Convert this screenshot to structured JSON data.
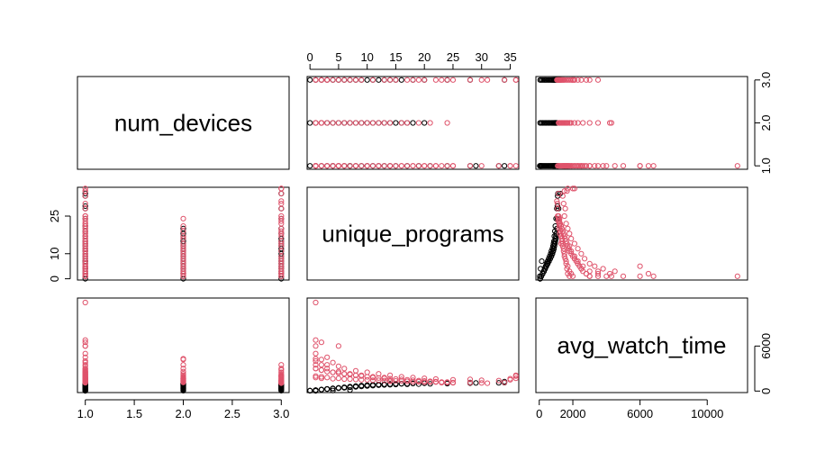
{
  "chart_data": {
    "type": "scatter",
    "variables": [
      "num_devices",
      "unique_programs",
      "avg_watch_time"
    ],
    "colors": {
      "group_a": "#000000",
      "group_b": "#DF536B"
    },
    "group_color_order": [
      "group_a",
      "group_b"
    ],
    "axes": {
      "num_devices": {
        "range": [
          0.92,
          3.08
        ],
        "ticks": [
          "1.0",
          "1.5",
          "2.0",
          "2.5",
          "3.0"
        ],
        "tick_values": [
          1.0,
          1.5,
          2.0,
          2.5,
          3.0
        ]
      },
      "unique_programs": {
        "range": [
          -0.5,
          36.5
        ],
        "ticks": [
          "0",
          "5",
          "10",
          "15",
          "20",
          "25",
          "30",
          "35"
        ],
        "tick_values": [
          0,
          5,
          10,
          15,
          20,
          25,
          30,
          35
        ],
        "left_ticks": [
          "0",
          "10",
          "25"
        ],
        "left_tick_values": [
          0,
          10,
          25
        ]
      },
      "avg_watch_time": {
        "range": [
          -200,
          12400
        ],
        "ticks": [
          "0",
          "2000",
          "6000",
          "10000"
        ],
        "tick_values": [
          0,
          2000,
          6000,
          10000
        ],
        "right_ticks": [
          "0",
          "6000"
        ],
        "right_tick_values": [
          0,
          6000
        ]
      }
    },
    "axis_labels": {
      "top": [
        "0",
        "5",
        "10",
        "15",
        "20",
        "25",
        "30",
        "35"
      ],
      "right_top": [
        "1.0",
        "2.0",
        "3.0"
      ],
      "left_middle": [
        "0",
        "10",
        "25"
      ],
      "right_bottom": [
        "0",
        "6000"
      ],
      "bottom_left": [
        "1.0",
        "1.5",
        "2.0",
        "2.5",
        "3.0"
      ],
      "bottom_right": [
        "0",
        "2000",
        "6000",
        "10000"
      ]
    },
    "observations": [
      [
        1,
        0,
        50,
        0
      ],
      [
        1,
        1,
        120,
        0
      ],
      [
        1,
        2,
        200,
        0
      ],
      [
        1,
        3,
        260,
        0
      ],
      [
        1,
        4,
        320,
        0
      ],
      [
        1,
        5,
        380,
        0
      ],
      [
        1,
        6,
        440,
        0
      ],
      [
        1,
        7,
        500,
        0
      ],
      [
        1,
        8,
        560,
        0
      ],
      [
        1,
        9,
        620,
        0
      ],
      [
        1,
        10,
        680,
        0
      ],
      [
        1,
        11,
        720,
        0
      ],
      [
        1,
        12,
        780,
        0
      ],
      [
        1,
        13,
        820,
        0
      ],
      [
        1,
        14,
        850,
        0
      ],
      [
        1,
        15,
        880,
        0
      ],
      [
        1,
        17,
        900,
        0
      ],
      [
        1,
        19,
        930,
        0
      ],
      [
        1,
        21,
        960,
        0
      ],
      [
        1,
        24,
        1000,
        0
      ],
      [
        1,
        28,
        1050,
        0
      ],
      [
        1,
        29,
        1080,
        0
      ],
      [
        1,
        33,
        1100,
        0
      ],
      [
        1,
        34,
        1120,
        0
      ],
      [
        1,
        1,
        30,
        0
      ],
      [
        1,
        4,
        80,
        0
      ],
      [
        1,
        7,
        150,
        0
      ],
      [
        2,
        0,
        50,
        0
      ],
      [
        2,
        1,
        120,
        0
      ],
      [
        2,
        2,
        200,
        0
      ],
      [
        2,
        3,
        280,
        0
      ],
      [
        2,
        4,
        350,
        0
      ],
      [
        2,
        5,
        420,
        0
      ],
      [
        2,
        6,
        500,
        0
      ],
      [
        2,
        7,
        580,
        0
      ],
      [
        2,
        8,
        650,
        0
      ],
      [
        2,
        9,
        720,
        0
      ],
      [
        2,
        10,
        780,
        0
      ],
      [
        2,
        11,
        830,
        0
      ],
      [
        2,
        12,
        870,
        0
      ],
      [
        2,
        13,
        900,
        0
      ],
      [
        2,
        14,
        930,
        0
      ],
      [
        2,
        15,
        950,
        0
      ],
      [
        2,
        16,
        970,
        0
      ],
      [
        2,
        17,
        990,
        0
      ],
      [
        2,
        18,
        1010,
        0
      ],
      [
        2,
        20,
        1050,
        0
      ],
      [
        3,
        0,
        50,
        0
      ],
      [
        3,
        1,
        120,
        0
      ],
      [
        3,
        2,
        200,
        0
      ],
      [
        3,
        3,
        280,
        0
      ],
      [
        3,
        4,
        350,
        0
      ],
      [
        3,
        5,
        420,
        0
      ],
      [
        3,
        6,
        500,
        0
      ],
      [
        3,
        7,
        580,
        0
      ],
      [
        3,
        8,
        650,
        0
      ],
      [
        3,
        9,
        720,
        0
      ],
      [
        3,
        10,
        780,
        0
      ],
      [
        3,
        11,
        830,
        0
      ],
      [
        3,
        12,
        870,
        0
      ],
      [
        3,
        13,
        900,
        0
      ],
      [
        3,
        14,
        930,
        0
      ],
      [
        3,
        15,
        960,
        0
      ],
      [
        3,
        16,
        990,
        0
      ],
      [
        3,
        18,
        1020,
        0
      ],
      [
        3,
        20,
        1050,
        0
      ],
      [
        3,
        24,
        1080,
        0
      ],
      [
        3,
        28,
        1150,
        0
      ],
      [
        3,
        34,
        1250,
        0
      ],
      [
        1,
        1,
        3000,
        1
      ],
      [
        1,
        2,
        2800,
        1
      ],
      [
        1,
        3,
        2600,
        1
      ],
      [
        1,
        4,
        2500,
        1
      ],
      [
        1,
        5,
        2400,
        1
      ],
      [
        1,
        6,
        2300,
        1
      ],
      [
        1,
        7,
        2200,
        1
      ],
      [
        1,
        8,
        2100,
        1
      ],
      [
        1,
        9,
        2000,
        1
      ],
      [
        1,
        10,
        1900,
        1
      ],
      [
        1,
        11,
        1800,
        1
      ],
      [
        1,
        12,
        1750,
        1
      ],
      [
        1,
        13,
        1700,
        1
      ],
      [
        1,
        14,
        1650,
        1
      ],
      [
        1,
        15,
        1600,
        1
      ],
      [
        1,
        16,
        1550,
        1
      ],
      [
        1,
        17,
        1500,
        1
      ],
      [
        1,
        18,
        1450,
        1
      ],
      [
        1,
        19,
        1400,
        1
      ],
      [
        1,
        20,
        1350,
        1
      ],
      [
        1,
        21,
        1300,
        1
      ],
      [
        1,
        22,
        1250,
        1
      ],
      [
        1,
        23,
        1200,
        1
      ],
      [
        1,
        24,
        1150,
        1
      ],
      [
        1,
        25,
        1100,
        1
      ],
      [
        1,
        1,
        3500,
        1
      ],
      [
        1,
        1,
        4000,
        1
      ],
      [
        1,
        1,
        5000,
        1
      ],
      [
        1,
        1,
        6000,
        1
      ],
      [
        1,
        2,
        6500,
        1
      ],
      [
        1,
        1,
        6800,
        1
      ],
      [
        1,
        3,
        4500,
        1
      ],
      [
        1,
        4,
        3800,
        1
      ],
      [
        1,
        5,
        3300,
        1
      ],
      [
        1,
        6,
        3000,
        1
      ],
      [
        1,
        8,
        2700,
        1
      ],
      [
        1,
        10,
        2500,
        1
      ],
      [
        1,
        12,
        2300,
        1
      ],
      [
        1,
        14,
        2100,
        1
      ],
      [
        1,
        16,
        1900,
        1
      ],
      [
        1,
        18,
        1800,
        1
      ],
      [
        1,
        20,
        1700,
        1
      ],
      [
        1,
        22,
        1600,
        1
      ],
      [
        1,
        25,
        1500,
        1
      ],
      [
        1,
        28,
        1550,
        1
      ],
      [
        1,
        30,
        1450,
        1
      ],
      [
        1,
        33,
        1400,
        1
      ],
      [
        1,
        35,
        1500,
        1
      ],
      [
        1,
        36,
        1700,
        1
      ],
      [
        1,
        35,
        1650,
        1
      ],
      [
        1,
        1,
        11800,
        1
      ],
      [
        1,
        5,
        6000,
        1
      ],
      [
        2,
        1,
        1800,
        1
      ],
      [
        2,
        2,
        1700,
        1
      ],
      [
        2,
        4,
        1650,
        1
      ],
      [
        2,
        6,
        1600,
        1
      ],
      [
        2,
        8,
        1550,
        1
      ],
      [
        2,
        10,
        1500,
        1
      ],
      [
        2,
        12,
        1450,
        1
      ],
      [
        2,
        14,
        1400,
        1
      ],
      [
        2,
        16,
        1350,
        1
      ],
      [
        2,
        17,
        1300,
        1
      ],
      [
        2,
        19,
        1250,
        1
      ],
      [
        2,
        21,
        1200,
        1
      ],
      [
        2,
        24,
        1150,
        1
      ],
      [
        2,
        2,
        3500,
        1
      ],
      [
        2,
        3,
        3000,
        1
      ],
      [
        2,
        5,
        2600,
        1
      ],
      [
        2,
        7,
        2300,
        1
      ],
      [
        2,
        9,
        2100,
        1
      ],
      [
        2,
        11,
        1900,
        1
      ],
      [
        2,
        13,
        1800,
        1
      ],
      [
        2,
        1,
        4300,
        1
      ],
      [
        2,
        2,
        4200,
        1
      ],
      [
        3,
        1,
        2000,
        1
      ],
      [
        3,
        2,
        1900,
        1
      ],
      [
        3,
        3,
        1800,
        1
      ],
      [
        3,
        5,
        1700,
        1
      ],
      [
        3,
        7,
        1600,
        1
      ],
      [
        3,
        9,
        1500,
        1
      ],
      [
        3,
        11,
        1450,
        1
      ],
      [
        3,
        13,
        1400,
        1
      ],
      [
        3,
        15,
        1350,
        1
      ],
      [
        3,
        17,
        1300,
        1
      ],
      [
        3,
        19,
        1250,
        1
      ],
      [
        3,
        22,
        1200,
        1
      ],
      [
        3,
        25,
        1150,
        1
      ],
      [
        3,
        28,
        1100,
        1
      ],
      [
        3,
        31,
        1050,
        1
      ],
      [
        3,
        36,
        2000,
        1
      ],
      [
        3,
        2,
        2800,
        1
      ],
      [
        3,
        4,
        2500,
        1
      ],
      [
        3,
        6,
        2300,
        1
      ],
      [
        3,
        8,
        2100,
        1
      ],
      [
        3,
        1,
        3000,
        1
      ],
      [
        3,
        3,
        3500,
        1
      ],
      [
        3,
        14,
        1300,
        1
      ],
      [
        3,
        18,
        1220,
        1
      ],
      [
        3,
        20,
        1180,
        1
      ],
      [
        3,
        23,
        1120,
        1
      ],
      [
        3,
        30,
        1080,
        1
      ],
      [
        3,
        34,
        1150,
        1
      ],
      [
        3,
        36,
        2100,
        1
      ],
      [
        3,
        24,
        1210,
        1
      ]
    ]
  }
}
